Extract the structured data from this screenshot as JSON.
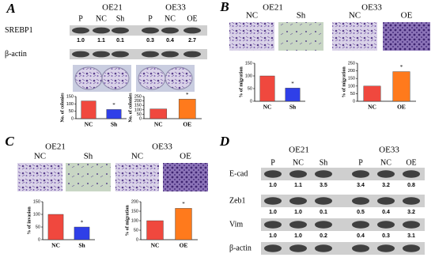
{
  "panels": {
    "A": {
      "label": "A",
      "groups": [
        "OE21",
        "OE33"
      ],
      "lanes": [
        "P",
        "NC",
        "Sh",
        "P",
        "NC",
        "OE"
      ],
      "rows": [
        {
          "name": "SREBP1",
          "quant": [
            "1.0",
            "1.1",
            "0.1",
            "0.3",
            "0.4",
            "2.7"
          ]
        },
        {
          "name": "β-actin"
        }
      ]
    },
    "B": {
      "label": "B",
      "groups": [
        "OE21",
        "OE33"
      ],
      "images": [
        "NC",
        "Sh",
        "NC",
        "OE"
      ]
    },
    "C": {
      "label": "C",
      "groups": [
        "OE21",
        "OE33"
      ],
      "images": [
        "NC",
        "Sh",
        "NC",
        "OE"
      ]
    },
    "D": {
      "label": "D",
      "groups": [
        "OE21",
        "OE33"
      ],
      "lanes": [
        "P",
        "NC",
        "Sh",
        "P",
        "NC",
        "OE"
      ],
      "rows": [
        {
          "name": "E-cad",
          "quant": [
            "1.0",
            "1.1",
            "3.5",
            "3.4",
            "3.2",
            "0.8"
          ]
        },
        {
          "name": "Zeb1",
          "quant": [
            "1.0",
            "1.0",
            "0.1",
            "0.5",
            "0.4",
            "3.2"
          ]
        },
        {
          "name": "Vim",
          "quant": [
            "1.0",
            "1.0",
            "0.2",
            "0.4",
            "0.3",
            "3.1"
          ]
        },
        {
          "name": "β-actin"
        }
      ]
    }
  },
  "chart_data": [
    {
      "type": "bar",
      "y_label": "No. of colonies",
      "categories": [
        "NC",
        "Sh"
      ],
      "values": [
        120,
        62
      ],
      "colors": [
        "#f0483e",
        "#2f3fe8"
      ],
      "ylim": [
        0,
        150
      ],
      "yticks": [
        0,
        50,
        100,
        150
      ],
      "annotation": "*"
    },
    {
      "type": "bar",
      "y_label": "No. of colonies",
      "categories": [
        "NC",
        "OE"
      ],
      "values": [
        110,
        220
      ],
      "colors": [
        "#f0483e",
        "#ff7a1c"
      ],
      "ylim": [
        0,
        250
      ],
      "yticks": [
        0,
        50,
        100,
        150,
        200,
        250
      ],
      "annotation": "*"
    },
    {
      "type": "bar",
      "y_label": "% of migration",
      "categories": [
        "NC",
        "Sh"
      ],
      "values": [
        100,
        52
      ],
      "colors": [
        "#f0483e",
        "#2f3fe8"
      ],
      "ylim": [
        0,
        150
      ],
      "yticks": [
        0,
        50,
        100,
        150
      ],
      "annotation": "*"
    },
    {
      "type": "bar",
      "y_label": "% of migration",
      "categories": [
        "NC",
        "OE"
      ],
      "values": [
        100,
        195
      ],
      "colors": [
        "#f0483e",
        "#ff7a1c"
      ],
      "ylim": [
        0,
        250
      ],
      "yticks": [
        0,
        50,
        100,
        150,
        200,
        250
      ],
      "annotation": "*"
    },
    {
      "type": "bar",
      "y_label": "% of invasion",
      "categories": [
        "NC",
        "Sh"
      ],
      "values": [
        100,
        50
      ],
      "colors": [
        "#f0483e",
        "#2f3fe8"
      ],
      "ylim": [
        0,
        150
      ],
      "yticks": [
        0,
        50,
        100,
        150
      ],
      "annotation": "*"
    },
    {
      "type": "bar",
      "y_label": "% of migration",
      "categories": [
        "NC",
        "OE"
      ],
      "values": [
        100,
        165
      ],
      "colors": [
        "#f0483e",
        "#ff7a1c"
      ],
      "ylim": [
        0,
        200
      ],
      "yticks": [
        0,
        50,
        100,
        150,
        200
      ],
      "annotation": "*"
    }
  ]
}
